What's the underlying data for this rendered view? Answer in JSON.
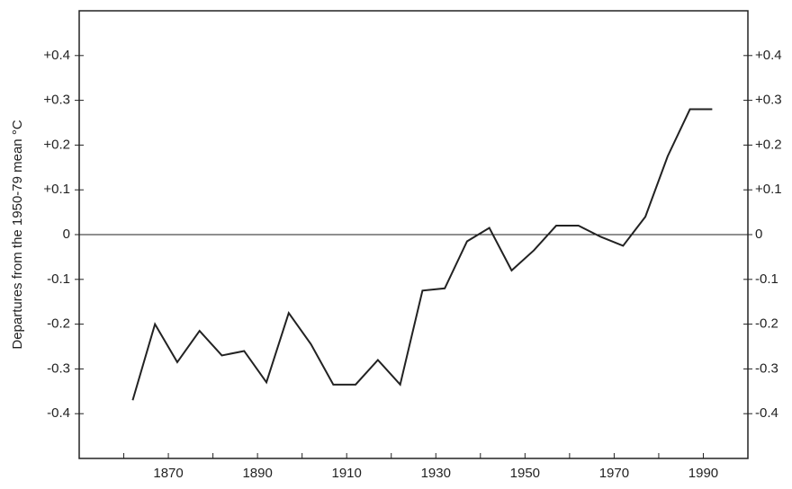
{
  "chart_data": {
    "type": "line",
    "y_label": "Departures from the 1950-79 mean °C",
    "x": [
      1862,
      1867,
      1872,
      1877,
      1882,
      1887,
      1892,
      1897,
      1902,
      1907,
      1912,
      1917,
      1922,
      1927,
      1932,
      1937,
      1942,
      1947,
      1952,
      1957,
      1962,
      1967,
      1972,
      1977,
      1982,
      1987,
      1992
    ],
    "values": [
      -0.37,
      -0.2,
      -0.285,
      -0.215,
      -0.27,
      -0.26,
      -0.33,
      -0.175,
      -0.245,
      -0.335,
      -0.335,
      -0.28,
      -0.335,
      -0.125,
      -0.12,
      -0.015,
      0.015,
      -0.08,
      -0.035,
      0.02,
      0.02,
      -0.005,
      -0.025,
      0.04,
      0.175,
      0.28,
      0.28
    ],
    "color": "#222222",
    "xlim": [
      1850,
      2000
    ],
    "xticks": [
      1870,
      1890,
      1910,
      1930,
      1950,
      1970,
      1990
    ],
    "x_minor_ticks": [
      1860,
      1880,
      1900,
      1920,
      1940,
      1960,
      1980
    ],
    "ylim": [
      -0.5,
      0.5
    ],
    "yticks": [
      {
        "value": 0.4,
        "label": "+0.4"
      },
      {
        "value": 0.3,
        "label": "+0.3"
      },
      {
        "value": 0.2,
        "label": "+0.2"
      },
      {
        "value": 0.1,
        "label": "+0.1"
      },
      0,
      {
        "value": -0.1,
        "label": "-0.1"
      },
      {
        "value": -0.2,
        "label": "-0.2"
      },
      {
        "value": -0.3,
        "label": "-0.3"
      },
      {
        "value": -0.4,
        "label": "-0.4"
      }
    ],
    "reference_line": 0,
    "mirror_y_axis": true
  }
}
